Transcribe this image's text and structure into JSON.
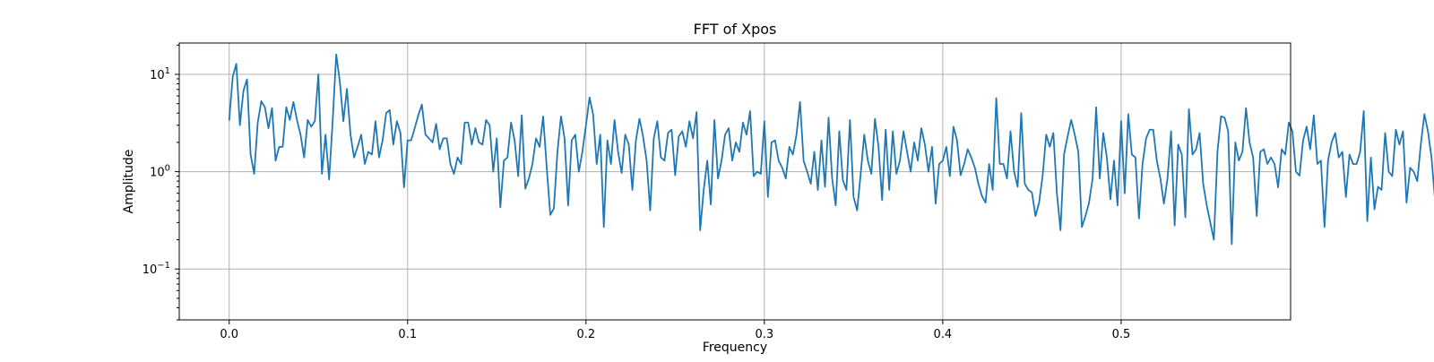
{
  "chart_data": {
    "type": "line",
    "title": "FFT of Xpos",
    "xlabel": "Frequency",
    "ylabel": "Amplitude",
    "xlim": [
      -0.028,
      0.595
    ],
    "ylim": [
      0.03,
      21
    ],
    "yscale": "log",
    "grid": true,
    "x_ticks": [
      {
        "value": 0.0,
        "label": "0.0"
      },
      {
        "value": 0.1,
        "label": "0.1"
      },
      {
        "value": 0.2,
        "label": "0.2"
      },
      {
        "value": 0.3,
        "label": "0.3"
      },
      {
        "value": 0.4,
        "label": "0.4"
      },
      {
        "value": 0.5,
        "label": "0.5"
      }
    ],
    "y_ticks": [
      {
        "value": 0.1,
        "base": "10",
        "exp": "−1"
      },
      {
        "value": 1,
        "base": "10",
        "exp": "0"
      },
      {
        "value": 10,
        "base": "10",
        "exp": "1"
      }
    ],
    "series": [
      {
        "color": "#1f77b4",
        "x_start": 0.0,
        "x_step": 0.002,
        "values": [
          3.4,
          9.5,
          12.8,
          3.0,
          6.8,
          8.9,
          1.5,
          0.95,
          3.2,
          5.3,
          4.6,
          2.8,
          4.5,
          1.3,
          1.8,
          1.8,
          4.6,
          3.4,
          5.2,
          3.4,
          2.4,
          1.4,
          3.4,
          2.9,
          3.3,
          10.0,
          0.95,
          2.4,
          0.83,
          3.3,
          16.0,
          8.5,
          3.3,
          7.1,
          2.4,
          1.4,
          1.8,
          2.4,
          1.2,
          1.6,
          1.5,
          3.3,
          1.4,
          2.1,
          4.0,
          4.3,
          1.9,
          3.3,
          2.5,
          0.69,
          2.1,
          2.1,
          2.8,
          3.8,
          4.9,
          2.4,
          2.2,
          2.0,
          3.1,
          1.7,
          2.2,
          2.2,
          1.2,
          0.95,
          1.4,
          1.2,
          3.2,
          3.2,
          1.9,
          2.8,
          2.0,
          1.9,
          3.4,
          3.0,
          1.0,
          2.2,
          0.43,
          1.3,
          1.4,
          3.2,
          2.1,
          0.9,
          3.8,
          0.67,
          0.85,
          1.2,
          2.2,
          1.8,
          3.7,
          1.1,
          0.36,
          0.42,
          1.6,
          3.7,
          2.2,
          0.45,
          2.1,
          2.4,
          1.0,
          1.6,
          3.0,
          5.8,
          3.9,
          1.2,
          2.4,
          0.27,
          2.1,
          1.2,
          3.4,
          1.6,
          0.97,
          2.4,
          1.9,
          0.65,
          2.1,
          3.5,
          2.3,
          1.3,
          0.4,
          2.2,
          3.3,
          1.4,
          1.3,
          2.5,
          2.7,
          0.92,
          2.3,
          2.6,
          1.8,
          3.3,
          2.2,
          4.1,
          0.25,
          0.65,
          1.3,
          0.46,
          3.4,
          0.85,
          1.3,
          2.4,
          2.8,
          1.3,
          2.0,
          1.6,
          3.2,
          2.4,
          4.2,
          0.9,
          1.0,
          0.95,
          3.3,
          0.55,
          2.0,
          2.1,
          1.3,
          1.1,
          0.85,
          1.8,
          1.5,
          2.4,
          5.2,
          1.3,
          1.0,
          0.75,
          1.6,
          0.65,
          2.1,
          0.7,
          3.6,
          0.85,
          0.45,
          2.6,
          0.82,
          0.65,
          3.4,
          0.55,
          0.4,
          0.95,
          2.4,
          1.3,
          0.95,
          3.5,
          1.8,
          0.51,
          2.7,
          0.65,
          2.6,
          0.95,
          1.3,
          2.6,
          1.6,
          1.0,
          2.0,
          1.3,
          2.8,
          1.9,
          1.0,
          1.8,
          0.47,
          1.2,
          1.3,
          1.8,
          0.9,
          2.9,
          2.1,
          0.92,
          1.2,
          1.7,
          1.4,
          1.1,
          0.75,
          0.56,
          0.48,
          1.2,
          0.65,
          5.7,
          1.2,
          1.2,
          0.85,
          2.6,
          1.0,
          0.7,
          4.0,
          0.75,
          0.65,
          0.61,
          0.35,
          0.48,
          0.91,
          2.4,
          1.8,
          2.5,
          0.6,
          0.25,
          1.5,
          2.3,
          3.4,
          2.4,
          1.6,
          0.27,
          0.35,
          0.48,
          0.85,
          4.6,
          0.85,
          2.5,
          1.4,
          0.52,
          1.3,
          0.45,
          3.3,
          0.6,
          3.9,
          1.5,
          1.4,
          0.33,
          1.2,
          2.2,
          2.7,
          2.7,
          1.3,
          0.85,
          0.47,
          0.85,
          2.6,
          0.28,
          1.9,
          1.5,
          0.34,
          4.4,
          1.5,
          1.7,
          2.5,
          0.75,
          0.45,
          0.3,
          0.2,
          1.6,
          3.7,
          3.6,
          2.6,
          0.18,
          2.0,
          1.3,
          1.6,
          4.5,
          2.0,
          1.4,
          0.35,
          1.6,
          1.7,
          1.2,
          1.4,
          1.2,
          0.69,
          1.7,
          1.5,
          3.2,
          2.6,
          1.0,
          0.91,
          2.1,
          2.9,
          1.7,
          3.8,
          1.2,
          1.3,
          0.27,
          1.3,
          2.0,
          2.5,
          1.4,
          1.6,
          0.55,
          1.5,
          1.2,
          1.2,
          1.6,
          4.2,
          0.31,
          1.4,
          0.41,
          0.7,
          0.65,
          2.5,
          1.0,
          0.9,
          2.7,
          1.9,
          2.6,
          0.48,
          1.1,
          1.0,
          0.8,
          1.9,
          3.9,
          2.6,
          1.4,
          0.5,
          1.2,
          0.6,
          1.1,
          0.45,
          2.0,
          1.4,
          1.8,
          0.46,
          3.5,
          1.0,
          1.1,
          0.72,
          0.95,
          0.65,
          0.7,
          1.6,
          2.5,
          0.55,
          2.2,
          0.14,
          0.38,
          2.8,
          1.9,
          1.1,
          1.6,
          1.3,
          0.95,
          1.5,
          2.2,
          1.7,
          3.2,
          0.04,
          2.0,
          1.0,
          0.24,
          0.95,
          1.2,
          1.3,
          1.3,
          1.2,
          2.3,
          0.18,
          2.0,
          0.25,
          3.7,
          3.6,
          0.62,
          1.4,
          0.17,
          0.09,
          2.3,
          2.3,
          1.9,
          2.1,
          0.43,
          0.74
        ]
      }
    ]
  }
}
